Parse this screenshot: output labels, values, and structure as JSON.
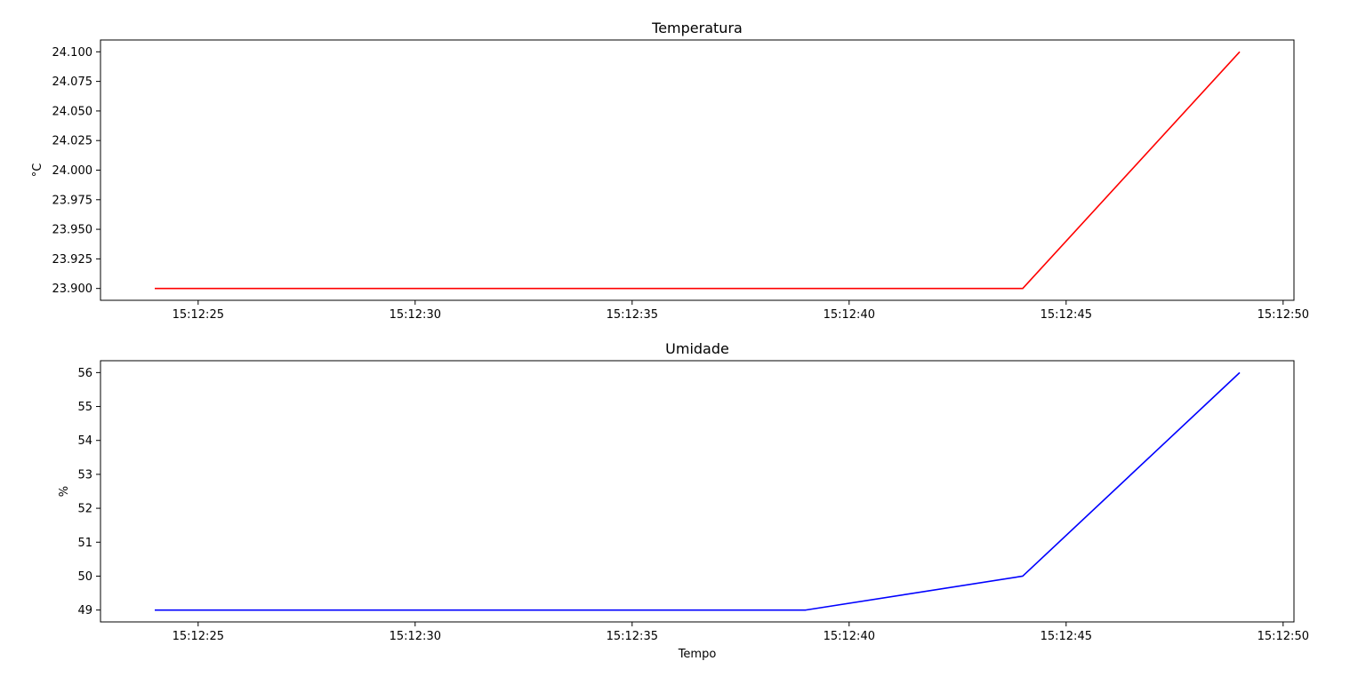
{
  "chart_data": [
    {
      "type": "line",
      "title": "Temperatura",
      "xlabel": "",
      "ylabel": "°C",
      "x": [
        "15:12:24",
        "15:12:29",
        "15:12:34",
        "15:12:39",
        "15:12:44",
        "15:12:49"
      ],
      "x_tick_labels": [
        "15:12:25",
        "15:12:30",
        "15:12:35",
        "15:12:40",
        "15:12:45",
        "15:12:50"
      ],
      "series": [
        {
          "values": [
            23.9,
            23.9,
            23.9,
            23.9,
            23.9,
            24.1
          ],
          "color": "#ff0000"
        }
      ],
      "y_ticks": [
        "23.900",
        "23.925",
        "23.950",
        "23.975",
        "24.000",
        "24.025",
        "24.050",
        "24.075",
        "24.100"
      ],
      "ylim": [
        23.89,
        24.11
      ],
      "xlim": [
        "15:12:22.75",
        "15:12:50.25"
      ],
      "grid": false
    },
    {
      "type": "line",
      "title": "Umidade",
      "xlabel": "Tempo",
      "ylabel": "%",
      "x": [
        "15:12:24",
        "15:12:29",
        "15:12:34",
        "15:12:39",
        "15:12:44",
        "15:12:49"
      ],
      "x_tick_labels": [
        "15:12:25",
        "15:12:30",
        "15:12:35",
        "15:12:40",
        "15:12:45",
        "15:12:50"
      ],
      "series": [
        {
          "values": [
            49,
            49,
            49,
            49,
            50,
            56
          ],
          "color": "#0000ff"
        }
      ],
      "y_ticks": [
        "49",
        "50",
        "51",
        "52",
        "53",
        "54",
        "55",
        "56"
      ],
      "ylim": [
        48.65,
        56.35
      ],
      "xlim": [
        "15:12:22.75",
        "15:12:50.25"
      ],
      "grid": false
    }
  ]
}
